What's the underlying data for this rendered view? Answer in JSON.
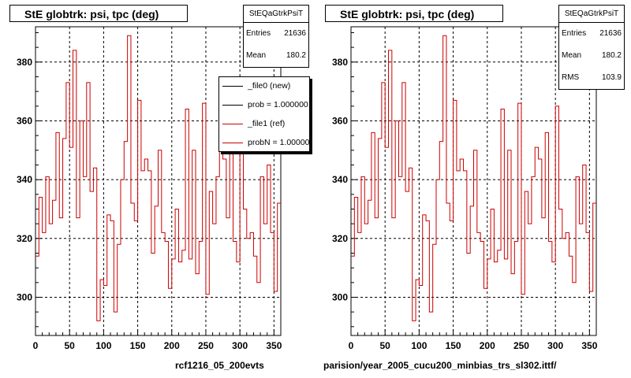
{
  "chart_data": [
    {
      "type": "line",
      "title": "StE globtrk: psi, tpc (deg)",
      "xlim": [
        0,
        360
      ],
      "ylim": [
        287,
        392
      ],
      "x_ticks": [
        0,
        50,
        100,
        150,
        200,
        250,
        300,
        350
      ],
      "y_ticks": [
        300,
        320,
        340,
        360,
        380
      ],
      "grid": true,
      "series": [
        {
          "name": "_file1 (ref)",
          "color": "#cc0000",
          "x": [
            0,
            5,
            10,
            15,
            20,
            25,
            30,
            35,
            40,
            45,
            50,
            55,
            60,
            65,
            70,
            75,
            80,
            85,
            90,
            95,
            100,
            105,
            110,
            115,
            120,
            125,
            130,
            135,
            140,
            145,
            150,
            155,
            160,
            165,
            170,
            175,
            180,
            185,
            190,
            195,
            200,
            205,
            210,
            215,
            220,
            225,
            230,
            235,
            240,
            245,
            250,
            255,
            260,
            265,
            270,
            275,
            280,
            285,
            290,
            295,
            300,
            305,
            310,
            315,
            320,
            325,
            330,
            335,
            340,
            345,
            350,
            355
          ],
          "y": [
            314,
            334,
            322,
            341,
            325,
            333,
            356,
            327,
            354,
            373,
            351,
            384,
            327,
            360,
            341,
            373,
            336,
            344,
            292,
            306,
            304,
            328,
            326,
            295,
            318,
            340,
            353,
            389,
            332,
            326,
            367,
            343,
            347,
            343,
            315,
            331,
            350,
            322,
            319,
            303,
            313,
            330,
            312,
            316,
            364,
            313,
            350,
            308,
            319,
            366,
            301,
            336,
            325,
            341,
            351,
            347,
            327,
            356,
            319,
            312,
            365,
            330,
            320,
            322,
            314,
            305,
            341,
            325,
            345,
            322,
            302,
            332
          ]
        }
      ],
      "legend": [
        {
          "label": "_file0 (new)",
          "color": "#000000"
        },
        {
          "label": "prob = 1.000000",
          "color": "#000000"
        },
        {
          "label": "_file1 (ref)",
          "color": "#cc0000"
        },
        {
          "label": "probN = 1.000000",
          "color": "#cc0000"
        }
      ],
      "stats": {
        "name": "StEQaGtrkPsiT",
        "entries": "21636",
        "mean": "180.2"
      },
      "caption": "rcf1216_05_200evts"
    },
    {
      "type": "line",
      "title": "StE globtrk: psi, tpc (deg)",
      "xlim": [
        0,
        360
      ],
      "ylim": [
        287,
        392
      ],
      "x_ticks": [
        0,
        50,
        100,
        150,
        200,
        250,
        300,
        350
      ],
      "y_ticks": [
        300,
        320,
        340,
        360,
        380
      ],
      "grid": true,
      "series": [
        {
          "color": "#cc0000",
          "x": [
            0,
            5,
            10,
            15,
            20,
            25,
            30,
            35,
            40,
            45,
            50,
            55,
            60,
            65,
            70,
            75,
            80,
            85,
            90,
            95,
            100,
            105,
            110,
            115,
            120,
            125,
            130,
            135,
            140,
            145,
            150,
            155,
            160,
            165,
            170,
            175,
            180,
            185,
            190,
            195,
            200,
            205,
            210,
            215,
            220,
            225,
            230,
            235,
            240,
            245,
            250,
            255,
            260,
            265,
            270,
            275,
            280,
            285,
            290,
            295,
            300,
            305,
            310,
            315,
            320,
            325,
            330,
            335,
            340,
            345,
            350,
            355
          ],
          "y": [
            314,
            334,
            322,
            341,
            325,
            333,
            356,
            327,
            354,
            373,
            351,
            384,
            327,
            360,
            341,
            373,
            336,
            344,
            292,
            306,
            304,
            328,
            326,
            295,
            318,
            340,
            353,
            389,
            332,
            326,
            367,
            343,
            347,
            343,
            315,
            331,
            350,
            322,
            319,
            303,
            313,
            330,
            312,
            316,
            364,
            313,
            350,
            308,
            319,
            366,
            301,
            336,
            325,
            341,
            351,
            347,
            327,
            356,
            319,
            312,
            365,
            330,
            320,
            322,
            314,
            305,
            341,
            325,
            345,
            322,
            302,
            332
          ]
        }
      ],
      "stats": {
        "name": "StEQaGtrkPsiT",
        "entries": "21636",
        "mean": "180.2",
        "rms": "103.9"
      },
      "caption": "parision/year_2005_cucu200_minbias_trs_sl302.ittf/"
    }
  ],
  "labels": {
    "entries": "Entries",
    "mean": "Mean",
    "rms": "RMS"
  }
}
